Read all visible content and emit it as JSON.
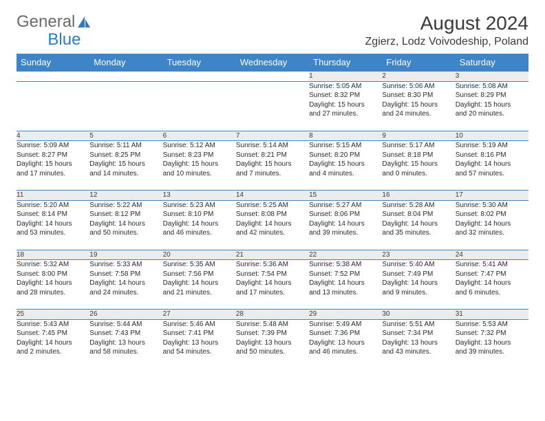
{
  "brand": {
    "part1": "General",
    "part2": "Blue"
  },
  "month_title": "August 2024",
  "location": "Zgierz, Lodz Voivodeship, Poland",
  "colors": {
    "header_bg": "#3d85c6",
    "header_text": "#ffffff",
    "daynum_bg": "#ececec",
    "border": "#3d85c6",
    "text": "#2a2a2a",
    "brand_gray": "#6a6a6a",
    "brand_blue": "#2f7abf"
  },
  "day_headers": [
    "Sunday",
    "Monday",
    "Tuesday",
    "Wednesday",
    "Thursday",
    "Friday",
    "Saturday"
  ],
  "weeks": [
    {
      "nums": [
        "",
        "",
        "",
        "",
        "1",
        "2",
        "3"
      ],
      "cells": [
        null,
        null,
        null,
        null,
        {
          "sunrise": "5:05 AM",
          "sunset": "8:32 PM",
          "day_h": 15,
          "day_m": 27
        },
        {
          "sunrise": "5:06 AM",
          "sunset": "8:30 PM",
          "day_h": 15,
          "day_m": 24
        },
        {
          "sunrise": "5:08 AM",
          "sunset": "8:29 PM",
          "day_h": 15,
          "day_m": 20
        }
      ]
    },
    {
      "nums": [
        "4",
        "5",
        "6",
        "7",
        "8",
        "9",
        "10"
      ],
      "cells": [
        {
          "sunrise": "5:09 AM",
          "sunset": "8:27 PM",
          "day_h": 15,
          "day_m": 17
        },
        {
          "sunrise": "5:11 AM",
          "sunset": "8:25 PM",
          "day_h": 15,
          "day_m": 14
        },
        {
          "sunrise": "5:12 AM",
          "sunset": "8:23 PM",
          "day_h": 15,
          "day_m": 10
        },
        {
          "sunrise": "5:14 AM",
          "sunset": "8:21 PM",
          "day_h": 15,
          "day_m": 7
        },
        {
          "sunrise": "5:15 AM",
          "sunset": "8:20 PM",
          "day_h": 15,
          "day_m": 4
        },
        {
          "sunrise": "5:17 AM",
          "sunset": "8:18 PM",
          "day_h": 15,
          "day_m": 0
        },
        {
          "sunrise": "5:19 AM",
          "sunset": "8:16 PM",
          "day_h": 14,
          "day_m": 57
        }
      ]
    },
    {
      "nums": [
        "11",
        "12",
        "13",
        "14",
        "15",
        "16",
        "17"
      ],
      "cells": [
        {
          "sunrise": "5:20 AM",
          "sunset": "8:14 PM",
          "day_h": 14,
          "day_m": 53
        },
        {
          "sunrise": "5:22 AM",
          "sunset": "8:12 PM",
          "day_h": 14,
          "day_m": 50
        },
        {
          "sunrise": "5:23 AM",
          "sunset": "8:10 PM",
          "day_h": 14,
          "day_m": 46
        },
        {
          "sunrise": "5:25 AM",
          "sunset": "8:08 PM",
          "day_h": 14,
          "day_m": 42
        },
        {
          "sunrise": "5:27 AM",
          "sunset": "8:06 PM",
          "day_h": 14,
          "day_m": 39
        },
        {
          "sunrise": "5:28 AM",
          "sunset": "8:04 PM",
          "day_h": 14,
          "day_m": 35
        },
        {
          "sunrise": "5:30 AM",
          "sunset": "8:02 PM",
          "day_h": 14,
          "day_m": 32
        }
      ]
    },
    {
      "nums": [
        "18",
        "19",
        "20",
        "21",
        "22",
        "23",
        "24"
      ],
      "cells": [
        {
          "sunrise": "5:32 AM",
          "sunset": "8:00 PM",
          "day_h": 14,
          "day_m": 28
        },
        {
          "sunrise": "5:33 AM",
          "sunset": "7:58 PM",
          "day_h": 14,
          "day_m": 24
        },
        {
          "sunrise": "5:35 AM",
          "sunset": "7:56 PM",
          "day_h": 14,
          "day_m": 21
        },
        {
          "sunrise": "5:36 AM",
          "sunset": "7:54 PM",
          "day_h": 14,
          "day_m": 17
        },
        {
          "sunrise": "5:38 AM",
          "sunset": "7:52 PM",
          "day_h": 14,
          "day_m": 13
        },
        {
          "sunrise": "5:40 AM",
          "sunset": "7:49 PM",
          "day_h": 14,
          "day_m": 9
        },
        {
          "sunrise": "5:41 AM",
          "sunset": "7:47 PM",
          "day_h": 14,
          "day_m": 6
        }
      ]
    },
    {
      "nums": [
        "25",
        "26",
        "27",
        "28",
        "29",
        "30",
        "31"
      ],
      "cells": [
        {
          "sunrise": "5:43 AM",
          "sunset": "7:45 PM",
          "day_h": 14,
          "day_m": 2
        },
        {
          "sunrise": "5:44 AM",
          "sunset": "7:43 PM",
          "day_h": 13,
          "day_m": 58
        },
        {
          "sunrise": "5:46 AM",
          "sunset": "7:41 PM",
          "day_h": 13,
          "day_m": 54
        },
        {
          "sunrise": "5:48 AM",
          "sunset": "7:39 PM",
          "day_h": 13,
          "day_m": 50
        },
        {
          "sunrise": "5:49 AM",
          "sunset": "7:36 PM",
          "day_h": 13,
          "day_m": 46
        },
        {
          "sunrise": "5:51 AM",
          "sunset": "7:34 PM",
          "day_h": 13,
          "day_m": 43
        },
        {
          "sunrise": "5:53 AM",
          "sunset": "7:32 PM",
          "day_h": 13,
          "day_m": 39
        }
      ]
    }
  ]
}
